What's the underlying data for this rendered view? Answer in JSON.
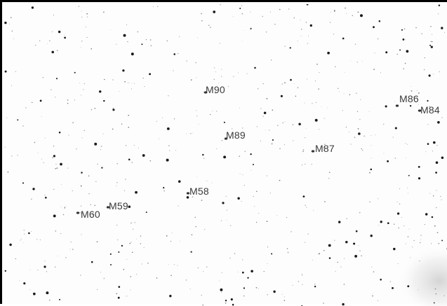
{
  "galaxies": [
    {
      "label": "M90"
    },
    {
      "label": "M86"
    },
    {
      "label": "M84"
    },
    {
      "label": "M89"
    },
    {
      "label": "M87"
    },
    {
      "label": "M58"
    },
    {
      "label": "M59"
    },
    {
      "label": "M60"
    }
  ],
  "colors": {
    "background": "#fdfdfd",
    "frame": "#000000",
    "stars": "#1a1a1a",
    "labels": "#3a3a3a",
    "glow": "#d8d8d8"
  }
}
